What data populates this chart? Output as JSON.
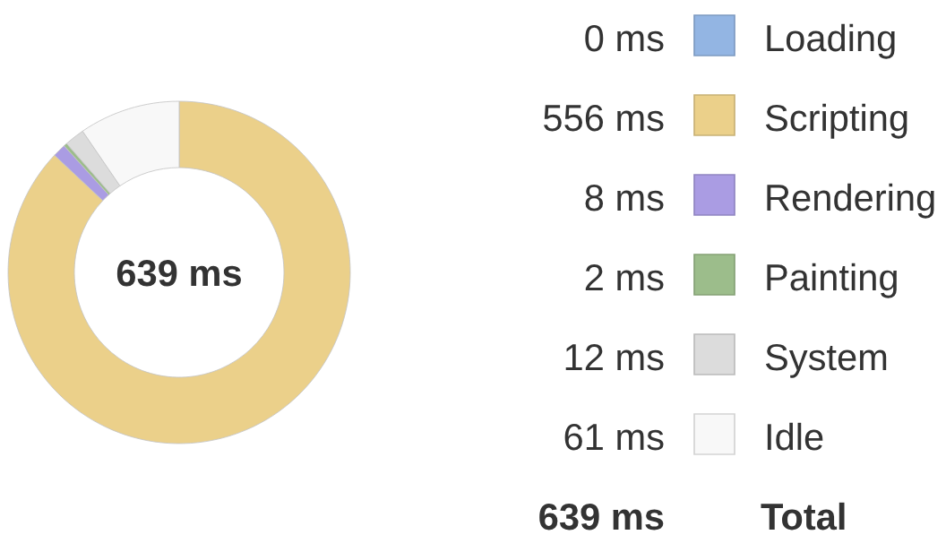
{
  "chart_data": {
    "type": "donut",
    "categories": [
      "Loading",
      "Scripting",
      "Rendering",
      "Painting",
      "System",
      "Idle"
    ],
    "values": [
      0,
      556,
      8,
      2,
      12,
      61
    ],
    "colors": [
      "#93b5e3",
      "#ebd08a",
      "#aa9ce3",
      "#9cbd8b",
      "#dcdcdc",
      "#f8f8f8"
    ],
    "value_labels": [
      "0 ms",
      "556 ms",
      "8 ms",
      "2 ms",
      "12 ms",
      "61 ms"
    ],
    "totals": [
      "639 ms"
    ],
    "annotations": [
      "Total"
    ],
    "legend": "right"
  }
}
